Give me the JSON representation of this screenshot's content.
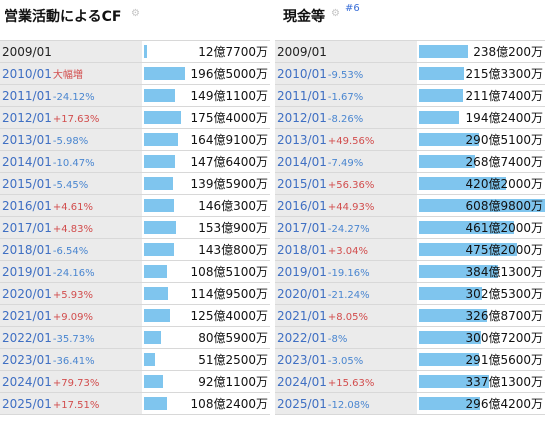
{
  "left": {
    "title": "営業活動によるCF",
    "gear_icon": "settings-gear-icon",
    "rows": [
      {
        "year": "2009/01",
        "change": "",
        "change_type": "none",
        "value": "12億7700万",
        "amount": 12.77
      },
      {
        "year": "2010/01",
        "change": "大幅増",
        "change_type": "pos",
        "value": "196億5000万",
        "amount": 196.5
      },
      {
        "year": "2011/01",
        "change": "-24.12%",
        "change_type": "neg",
        "value": "149億1100万",
        "amount": 149.11
      },
      {
        "year": "2012/01",
        "change": "+17.63%",
        "change_type": "pos",
        "value": "175億4000万",
        "amount": 175.4
      },
      {
        "year": "2013/01",
        "change": "-5.98%",
        "change_type": "neg",
        "value": "164億9100万",
        "amount": 164.91
      },
      {
        "year": "2014/01",
        "change": "-10.47%",
        "change_type": "neg",
        "value": "147億6400万",
        "amount": 147.64
      },
      {
        "year": "2015/01",
        "change": "-5.45%",
        "change_type": "neg",
        "value": "139億5900万",
        "amount": 139.59
      },
      {
        "year": "2016/01",
        "change": "+4.61%",
        "change_type": "pos",
        "value": "146億300万",
        "amount": 146.03
      },
      {
        "year": "2017/01",
        "change": "+4.83%",
        "change_type": "pos",
        "value": "153億900万",
        "amount": 153.09
      },
      {
        "year": "2018/01",
        "change": "-6.54%",
        "change_type": "neg",
        "value": "143億800万",
        "amount": 143.08
      },
      {
        "year": "2019/01",
        "change": "-24.16%",
        "change_type": "neg",
        "value": "108億5100万",
        "amount": 108.51
      },
      {
        "year": "2020/01",
        "change": "+5.93%",
        "change_type": "pos",
        "value": "114億9500万",
        "amount": 114.95
      },
      {
        "year": "2021/01",
        "change": "+9.09%",
        "change_type": "pos",
        "value": "125億4000万",
        "amount": 125.4
      },
      {
        "year": "2022/01",
        "change": "-35.73%",
        "change_type": "neg",
        "value": "80億5900万",
        "amount": 80.59
      },
      {
        "year": "2023/01",
        "change": "-36.41%",
        "change_type": "neg",
        "value": "51億2500万",
        "amount": 51.25
      },
      {
        "year": "2024/01",
        "change": "+79.73%",
        "change_type": "pos",
        "value": "92億1100万",
        "amount": 92.11
      },
      {
        "year": "2025/01",
        "change": "+17.51%",
        "change_type": "pos",
        "value": "108億2400万",
        "amount": 108.24
      }
    ]
  },
  "right": {
    "title": "現金等",
    "rank": "#6",
    "gear_icon": "settings-gear-icon",
    "rows": [
      {
        "year": "2009/01",
        "change": "",
        "change_type": "none",
        "value": "238億200万",
        "amount": 238.02
      },
      {
        "year": "2010/01",
        "change": "-9.53%",
        "change_type": "neg",
        "value": "215億3300万",
        "amount": 215.33
      },
      {
        "year": "2011/01",
        "change": "-1.67%",
        "change_type": "neg",
        "value": "211億7400万",
        "amount": 211.74
      },
      {
        "year": "2012/01",
        "change": "-8.26%",
        "change_type": "neg",
        "value": "194億2400万",
        "amount": 194.24
      },
      {
        "year": "2013/01",
        "change": "+49.56%",
        "change_type": "pos",
        "value": "290億5100万",
        "amount": 290.51
      },
      {
        "year": "2014/01",
        "change": "-7.49%",
        "change_type": "neg",
        "value": "268億7400万",
        "amount": 268.74
      },
      {
        "year": "2015/01",
        "change": "+56.36%",
        "change_type": "pos",
        "value": "420億2000万",
        "amount": 420.2
      },
      {
        "year": "2016/01",
        "change": "+44.93%",
        "change_type": "pos",
        "value": "608億9800万",
        "amount": 608.98
      },
      {
        "year": "2017/01",
        "change": "-24.27%",
        "change_type": "neg",
        "value": "461億2000万",
        "amount": 461.2
      },
      {
        "year": "2018/01",
        "change": "+3.04%",
        "change_type": "pos",
        "value": "475億2000万",
        "amount": 475.2
      },
      {
        "year": "2019/01",
        "change": "-19.16%",
        "change_type": "neg",
        "value": "384億1300万",
        "amount": 384.13
      },
      {
        "year": "2020/01",
        "change": "-21.24%",
        "change_type": "neg",
        "value": "302億5300万",
        "amount": 302.53
      },
      {
        "year": "2021/01",
        "change": "+8.05%",
        "change_type": "pos",
        "value": "326億8700万",
        "amount": 326.87
      },
      {
        "year": "2022/01",
        "change": "-8%",
        "change_type": "neg",
        "value": "300億7200万",
        "amount": 300.72
      },
      {
        "year": "2023/01",
        "change": "-3.05%",
        "change_type": "neg",
        "value": "291億5600万",
        "amount": 291.56
      },
      {
        "year": "2024/01",
        "change": "+15.63%",
        "change_type": "pos",
        "value": "337億1300万",
        "amount": 337.13
      },
      {
        "year": "2025/01",
        "change": "-12.08%",
        "change_type": "neg",
        "value": "296億4200万",
        "amount": 296.42
      }
    ]
  },
  "colors": {
    "bar": "#7fc5ee",
    "positive": "#d24d4d",
    "negative": "#4a86d0",
    "year_link": "#3f6fc3"
  }
}
